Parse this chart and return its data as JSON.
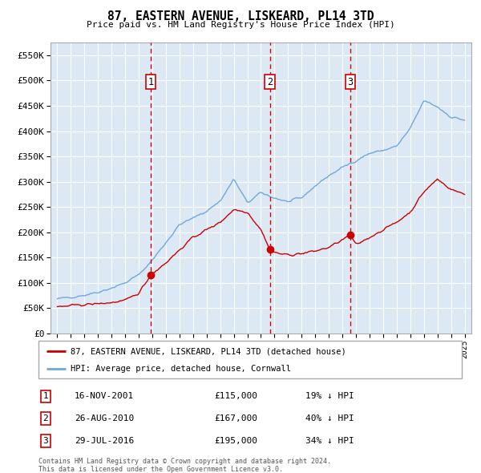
{
  "title": "87, EASTERN AVENUE, LISKEARD, PL14 3TD",
  "subtitle": "Price paid vs. HM Land Registry's House Price Index (HPI)",
  "legend_line1": "87, EASTERN AVENUE, LISKEARD, PL14 3TD (detached house)",
  "legend_line2": "HPI: Average price, detached house, Cornwall",
  "footer1": "Contains HM Land Registry data © Crown copyright and database right 2024.",
  "footer2": "This data is licensed under the Open Government Licence v3.0.",
  "bg_color": "#dce9f5",
  "grid_color": "#ffffff",
  "red_line_color": "#cc0000",
  "blue_line_color": "#6fa8dc",
  "sale_marker_color": "#cc0000",
  "dashed_line_color": "#dd0000",
  "ylim": [
    0,
    575000
  ],
  "yticks": [
    0,
    50000,
    100000,
    150000,
    200000,
    250000,
    300000,
    350000,
    400000,
    450000,
    500000,
    550000
  ],
  "ytick_labels": [
    "£0",
    "£50K",
    "£100K",
    "£150K",
    "£200K",
    "£250K",
    "£300K",
    "£350K",
    "£400K",
    "£450K",
    "£500K",
    "£550K"
  ],
  "xlim_start": 1994.5,
  "xlim_end": 2025.5,
  "xtick_years": [
    1995,
    1996,
    1997,
    1998,
    1999,
    2000,
    2001,
    2002,
    2003,
    2004,
    2005,
    2006,
    2007,
    2008,
    2009,
    2010,
    2011,
    2012,
    2013,
    2014,
    2015,
    2016,
    2017,
    2018,
    2019,
    2020,
    2021,
    2022,
    2023,
    2024,
    2025
  ],
  "sales": [
    {
      "num": 1,
      "date": "16-NOV-2001",
      "year": 2001.88,
      "price": 115000,
      "pct": "19%",
      "dir": "↓"
    },
    {
      "num": 2,
      "date": "26-AUG-2010",
      "year": 2010.65,
      "price": 167000,
      "pct": "40%",
      "dir": "↓"
    },
    {
      "num": 3,
      "date": "29-JUL-2016",
      "year": 2016.57,
      "price": 195000,
      "pct": "34%",
      "dir": "↓"
    }
  ]
}
